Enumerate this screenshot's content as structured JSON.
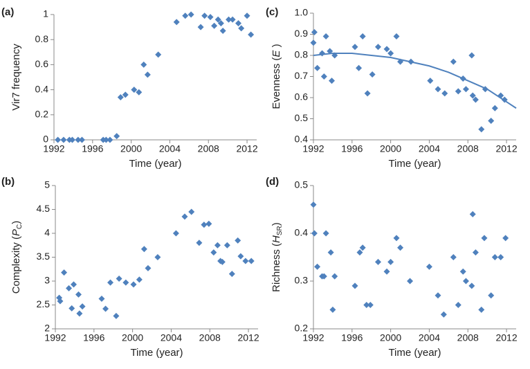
{
  "chart_data": [
    {
      "type": "scatter",
      "panel_label": "(a)",
      "ylabel": "Vir7 frequency",
      "xlabel": "Time (year)",
      "color": "#4f81bd",
      "xlim": [
        1992,
        2013
      ],
      "xticks": [
        1992,
        1996,
        2000,
        2004,
        2008,
        2012
      ],
      "ylim": [
        0,
        1
      ],
      "yticks": [
        0,
        0.2,
        0.4,
        0.6,
        0.8,
        1
      ],
      "x": [
        1992.4,
        1993.0,
        1993.6,
        1993.9,
        1994.5,
        1994.9,
        1997.1,
        1997.4,
        1997.8,
        1998.5,
        1998.9,
        1999.4,
        2000.3,
        2000.8,
        2001.3,
        2001.7,
        2002.8,
        2004.7,
        2005.6,
        2006.2,
        2007.2,
        2007.6,
        2008.2,
        2008.6,
        2009.0,
        2009.3,
        2009.5,
        2010.1,
        2010.5,
        2011.1,
        2011.4,
        2012.0,
        2012.4
      ],
      "values": [
        0,
        0,
        0,
        0,
        0,
        0,
        0,
        0,
        0,
        0.03,
        0.34,
        0.36,
        0.4,
        0.38,
        0.6,
        0.52,
        0.68,
        0.94,
        0.99,
        1.0,
        0.9,
        0.99,
        0.98,
        0.91,
        0.96,
        0.93,
        0.87,
        0.96,
        0.96,
        0.93,
        0.89,
        0.99,
        0.84
      ]
    },
    {
      "type": "scatter",
      "panel_label": "(b)",
      "ylabel": {
        "before": "Complexity (",
        "symbol": "P",
        "subscript": "C",
        "after": ")"
      },
      "xlabel": "Time (year)",
      "color": "#4f81bd",
      "xlim": [
        1992,
        2013
      ],
      "xticks": [
        1992,
        1996,
        2000,
        2004,
        2008,
        2012
      ],
      "ylim": [
        2,
        5
      ],
      "yticks": [
        2,
        2.5,
        3,
        3.5,
        4,
        4.5,
        5
      ],
      "x": [
        1992.4,
        1992.5,
        1992.9,
        1993.4,
        1993.7,
        1993.9,
        1994.4,
        1994.5,
        1994.8,
        1996.8,
        1997.2,
        1997.7,
        1998.3,
        1998.6,
        1999.3,
        2000.1,
        2000.7,
        2001.2,
        2001.6,
        2002.6,
        2004.5,
        2005.4,
        2006.1,
        2006.9,
        2007.4,
        2007.9,
        2008.4,
        2008.8,
        2009.1,
        2009.3,
        2009.8,
        2010.3,
        2010.9,
        2011.2,
        2011.7,
        2012.3
      ],
      "values": [
        2.65,
        2.58,
        3.18,
        2.85,
        2.43,
        2.93,
        2.72,
        2.32,
        2.47,
        2.63,
        2.42,
        2.97,
        2.27,
        3.05,
        2.97,
        2.93,
        3.03,
        3.67,
        3.27,
        3.5,
        4.0,
        4.35,
        4.45,
        3.8,
        4.18,
        4.2,
        3.6,
        3.75,
        3.42,
        3.4,
        3.75,
        3.15,
        3.85,
        3.52,
        3.42,
        3.42
      ]
    },
    {
      "type": "scatter",
      "panel_label": "(c)",
      "ylabel": {
        "before": "Evenness (",
        "symbol": "E",
        "subscript": "",
        "after": " )"
      },
      "xlabel": "Time (year)",
      "color": "#4f81bd",
      "xlim": [
        1992,
        2013
      ],
      "xticks": [
        1992,
        1996,
        2000,
        2004,
        2008,
        2012
      ],
      "ylim": [
        0.4,
        1
      ],
      "yticks": [
        0.4,
        0.5,
        0.6,
        0.7,
        0.8,
        0.9,
        {
          "value": 1,
          "label": "1.0"
        }
      ],
      "x": [
        1992.0,
        1992.1,
        1992.4,
        1992.9,
        1993.1,
        1993.3,
        1993.7,
        1993.9,
        1994.2,
        1996.3,
        1996.7,
        1997.1,
        1997.6,
        1998.1,
        1998.7,
        1999.6,
        2000.0,
        2000.6,
        2001.0,
        2002.1,
        2004.1,
        2004.9,
        2005.6,
        2006.5,
        2007.0,
        2007.5,
        2007.8,
        2008.4,
        2008.5,
        2008.8,
        2009.4,
        2009.8,
        2010.4,
        2010.8,
        2011.4,
        2011.8
      ],
      "values": [
        0.86,
        0.91,
        0.74,
        0.81,
        0.7,
        0.89,
        0.82,
        0.68,
        0.8,
        0.84,
        0.74,
        0.89,
        0.62,
        0.71,
        0.84,
        0.83,
        0.81,
        0.89,
        0.77,
        0.77,
        0.68,
        0.64,
        0.62,
        0.77,
        0.63,
        0.69,
        0.64,
        0.8,
        0.61,
        0.59,
        0.45,
        0.64,
        0.49,
        0.55,
        0.61,
        0.59
      ],
      "trendline": {
        "x": [
          1992,
          1994,
          1996,
          1998,
          2000,
          2002,
          2004,
          2006,
          2008,
          2010,
          2012,
          2013
        ],
        "values": [
          0.8,
          0.81,
          0.81,
          0.8,
          0.79,
          0.77,
          0.75,
          0.72,
          0.68,
          0.64,
          0.58,
          0.55
        ]
      }
    },
    {
      "type": "scatter",
      "panel_label": "(d)",
      "ylabel": {
        "before": "Richness (",
        "symbol": "H",
        "subscript": "SR",
        "after": ")"
      },
      "xlabel": "Time (year)",
      "color": "#4f81bd",
      "xlim": [
        1992,
        2013
      ],
      "xticks": [
        1992,
        1996,
        2000,
        2004,
        2008,
        2012
      ],
      "ylim": [
        0.2,
        0.5
      ],
      "yticks": [
        0.2,
        0.3,
        0.4,
        0.5
      ],
      "x": [
        1992.0,
        1992.1,
        1992.4,
        1992.9,
        1993.1,
        1993.3,
        1993.8,
        1994.0,
        1994.2,
        1996.3,
        1996.8,
        1997.1,
        1997.5,
        1997.9,
        1998.7,
        1999.6,
        2000.0,
        2000.6,
        2001.0,
        2002.0,
        2004.0,
        2004.9,
        2005.5,
        2006.5,
        2007.0,
        2007.5,
        2007.8,
        2008.4,
        2008.5,
        2008.8,
        2009.4,
        2009.7,
        2010.4,
        2010.8,
        2011.4,
        2011.9
      ],
      "values": [
        0.46,
        0.4,
        0.33,
        0.31,
        0.31,
        0.4,
        0.36,
        0.24,
        0.31,
        0.29,
        0.36,
        0.37,
        0.25,
        0.25,
        0.34,
        0.32,
        0.34,
        0.39,
        0.37,
        0.3,
        0.33,
        0.27,
        0.23,
        0.35,
        0.25,
        0.32,
        0.3,
        0.29,
        0.44,
        0.36,
        0.24,
        0.39,
        0.27,
        0.35,
        0.35,
        0.39
      ]
    }
  ]
}
